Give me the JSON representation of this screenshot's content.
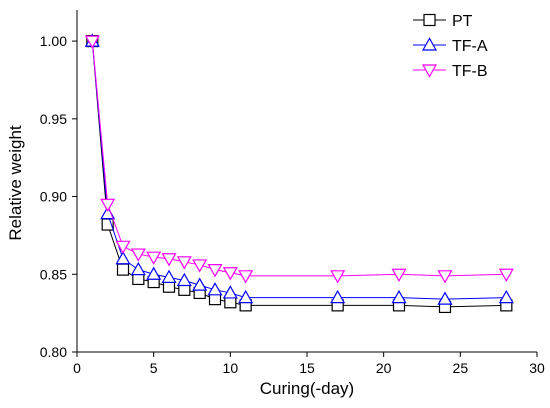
{
  "chart_data": {
    "type": "line",
    "title": "",
    "xlabel": "Curing(-day)",
    "ylabel": "Relative weight",
    "xlim": [
      0,
      30
    ],
    "ylim": [
      0.8,
      1.02
    ],
    "xticks": [
      0,
      5,
      10,
      15,
      20,
      25,
      30
    ],
    "xtick_labels": [
      "0",
      "5",
      "10",
      "15",
      "20",
      "25",
      "30"
    ],
    "yticks": [
      0.8,
      0.85,
      0.9,
      0.95,
      1.0
    ],
    "ytick_labels": [
      "0.80",
      "0.85",
      "0.90",
      "0.95",
      "1.00"
    ],
    "grid": false,
    "legend_position": "top-right",
    "series": [
      {
        "name": "PT",
        "color": "#000000",
        "marker": "square",
        "points": [
          [
            1,
            1.0
          ],
          [
            2,
            0.882
          ],
          [
            3,
            0.853
          ],
          [
            4,
            0.847
          ],
          [
            5,
            0.845
          ],
          [
            6,
            0.842
          ],
          [
            7,
            0.84
          ],
          [
            8,
            0.838
          ],
          [
            9,
            0.834
          ],
          [
            10,
            0.832
          ],
          [
            11,
            0.83
          ],
          [
            17,
            0.83
          ],
          [
            21,
            0.83
          ],
          [
            24,
            0.829
          ],
          [
            28,
            0.83
          ]
        ]
      },
      {
        "name": "TF-A",
        "color": "#0000ff",
        "marker": "triangle-up",
        "points": [
          [
            1,
            1.0
          ],
          [
            2,
            0.889
          ],
          [
            3,
            0.86
          ],
          [
            4,
            0.853
          ],
          [
            5,
            0.85
          ],
          [
            6,
            0.848
          ],
          [
            7,
            0.846
          ],
          [
            8,
            0.843
          ],
          [
            9,
            0.84
          ],
          [
            10,
            0.838
          ],
          [
            11,
            0.835
          ],
          [
            17,
            0.835
          ],
          [
            21,
            0.835
          ],
          [
            24,
            0.834
          ],
          [
            28,
            0.835
          ]
        ]
      },
      {
        "name": "TF-B",
        "color": "#ff00ff",
        "marker": "triangle-down",
        "points": [
          [
            1,
            1.0
          ],
          [
            2,
            0.895
          ],
          [
            3,
            0.868
          ],
          [
            4,
            0.863
          ],
          [
            5,
            0.861
          ],
          [
            6,
            0.86
          ],
          [
            7,
            0.858
          ],
          [
            8,
            0.856
          ],
          [
            9,
            0.853
          ],
          [
            10,
            0.851
          ],
          [
            11,
            0.849
          ],
          [
            17,
            0.849
          ],
          [
            21,
            0.85
          ],
          [
            24,
            0.849
          ],
          [
            28,
            0.85
          ]
        ]
      }
    ]
  }
}
